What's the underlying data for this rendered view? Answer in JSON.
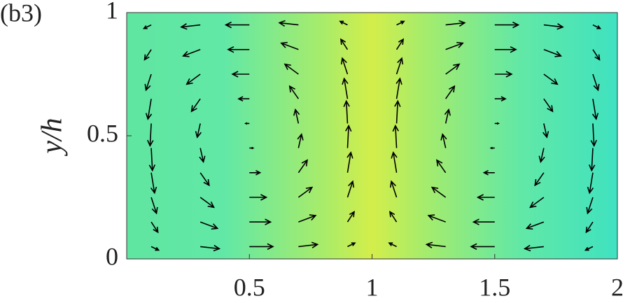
{
  "chart_data": {
    "type": "quiver",
    "panel_label": "(b3)",
    "ylabel": "y/h",
    "x": [
      0.1,
      0.3,
      0.5,
      0.7,
      0.9,
      1.1,
      1.3,
      1.5,
      1.7,
      1.9
    ],
    "y": [
      0.05,
      0.15,
      0.25,
      0.35,
      0.45,
      0.55,
      0.65,
      0.75,
      0.85,
      0.95
    ],
    "u": [
      [
        0.31,
        0.8,
        0.99,
        0.8,
        0.31,
        -0.31,
        -0.8,
        -0.99,
        -0.8,
        -0.31
      ],
      [
        0.28,
        0.72,
        0.89,
        0.72,
        0.28,
        -0.28,
        -0.72,
        -0.89,
        -0.72,
        -0.28
      ],
      [
        0.22,
        0.57,
        0.71,
        0.57,
        0.22,
        -0.22,
        -0.57,
        -0.71,
        -0.57,
        -0.22
      ],
      [
        0.14,
        0.37,
        0.45,
        0.37,
        0.14,
        -0.14,
        -0.37,
        -0.45,
        -0.37,
        -0.14
      ],
      [
        0.05,
        0.13,
        0.16,
        0.13,
        0.05,
        -0.05,
        -0.13,
        -0.16,
        -0.13,
        -0.05
      ],
      [
        -0.05,
        -0.13,
        -0.16,
        -0.13,
        -0.05,
        0.05,
        0.13,
        0.16,
        0.13,
        0.05
      ],
      [
        -0.14,
        -0.37,
        -0.45,
        -0.37,
        -0.14,
        0.14,
        0.37,
        0.45,
        0.37,
        0.14
      ],
      [
        -0.22,
        -0.57,
        -0.71,
        -0.57,
        -0.22,
        0.22,
        0.57,
        0.71,
        0.57,
        0.22
      ],
      [
        -0.28,
        -0.72,
        -0.89,
        -0.72,
        -0.28,
        0.28,
        0.72,
        0.89,
        0.72,
        0.28
      ],
      [
        -0.31,
        -0.8,
        -0.99,
        -0.8,
        -0.31,
        0.31,
        0.8,
        0.99,
        0.8,
        0.31
      ]
    ],
    "v": [
      [
        -0.15,
        -0.09,
        0,
        0.09,
        0.15,
        0.15,
        0.09,
        0,
        -0.09,
        -0.15
      ],
      [
        -0.43,
        -0.27,
        0,
        0.27,
        0.43,
        0.43,
        0.27,
        0,
        -0.27,
        -0.43
      ],
      [
        -0.67,
        -0.42,
        0,
        0.42,
        0.67,
        0.67,
        0.42,
        0,
        -0.42,
        -0.67
      ],
      [
        -0.85,
        -0.53,
        0,
        0.53,
        0.85,
        0.85,
        0.53,
        0,
        -0.53,
        -0.85
      ],
      [
        -0.94,
        -0.58,
        0,
        0.58,
        0.94,
        0.94,
        0.58,
        0,
        -0.58,
        -0.94
      ],
      [
        -0.94,
        -0.58,
        0,
        0.58,
        0.94,
        0.94,
        0.58,
        0,
        -0.58,
        -0.94
      ],
      [
        -0.85,
        -0.53,
        0,
        0.53,
        0.85,
        0.85,
        0.53,
        0,
        -0.53,
        -0.85
      ],
      [
        -0.67,
        -0.42,
        0,
        0.42,
        0.67,
        0.67,
        0.42,
        0,
        -0.42,
        -0.67
      ],
      [
        -0.43,
        -0.27,
        0,
        0.27,
        0.43,
        0.43,
        0.27,
        0,
        -0.27,
        -0.43
      ],
      [
        -0.15,
        -0.09,
        0,
        0.09,
        0.15,
        0.15,
        0.09,
        0,
        -0.09,
        -0.15
      ]
    ],
    "color": "#000000",
    "xlim": [
      0,
      2
    ],
    "xticks": [
      0.5,
      1,
      1.5,
      2
    ],
    "ylim": [
      0,
      1
    ],
    "yticks": [
      0,
      0.5,
      1
    ]
  }
}
